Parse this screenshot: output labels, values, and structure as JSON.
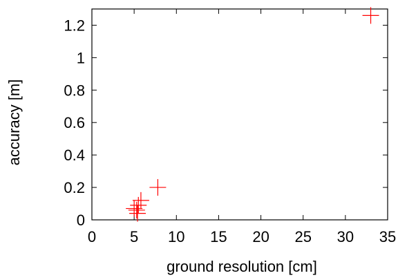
{
  "chart_data": {
    "type": "scatter",
    "xlabel": "ground resolution [cm]",
    "ylabel": "accuracy [m]",
    "xlim": [
      0,
      35
    ],
    "ylim": [
      0,
      1.3
    ],
    "x_ticks": [
      0,
      5,
      10,
      15,
      20,
      25,
      30,
      35
    ],
    "y_ticks": [
      0,
      0.2,
      0.4,
      0.6,
      0.8,
      1,
      1.2
    ],
    "x_tick_labels": [
      "0",
      "5",
      "10",
      "15",
      "20",
      "25",
      "30",
      "35"
    ],
    "y_tick_labels": [
      "0",
      "0.2",
      "0.4",
      "0.6",
      "0.8",
      "1",
      "1.2"
    ],
    "grid": false,
    "marker": "plus",
    "point_color": "#ff0000",
    "axis_color": "#000000",
    "series": [
      {
        "points": [
          {
            "x": 5.0,
            "y": 0.07
          },
          {
            "x": 5.3,
            "y": 0.06
          },
          {
            "x": 5.4,
            "y": 0.04
          },
          {
            "x": 5.5,
            "y": 0.09
          },
          {
            "x": 5.8,
            "y": 0.12
          },
          {
            "x": 7.8,
            "y": 0.2
          },
          {
            "x": 33.0,
            "y": 1.26
          }
        ]
      }
    ]
  }
}
